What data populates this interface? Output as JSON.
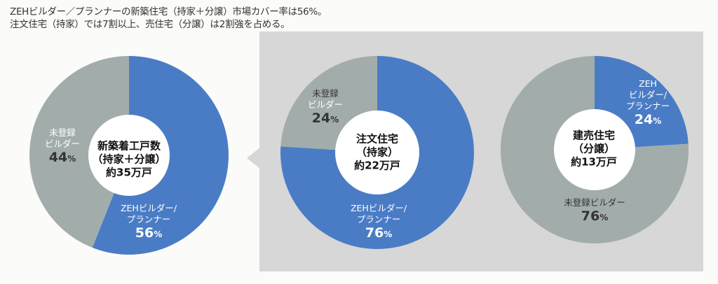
{
  "headline": [
    "ZEHビルダー／プランナーの新築住宅（持家＋分譲）市場カバー率は56%。",
    "注文住宅（持家）では7割以上、売住宅（分譲）は2割強を占める。"
  ],
  "colors": {
    "zeh": "#4a7cc6",
    "unregistered": "#a2adab",
    "panel": "#d6d7d6"
  },
  "chart_data": [
    {
      "type": "pie",
      "title": [
        "新築着工戸数",
        "（持家＋分譲）",
        "約35万戸"
      ],
      "slices": [
        {
          "name": "ZEHビルダー/プランナー",
          "label_lines": [
            "ZEHビルダー/",
            "プランナー"
          ],
          "value": 56,
          "pct_label": "56"
        },
        {
          "name": "未登録ビルダー",
          "label_lines": [
            "未登録",
            "ビルダー"
          ],
          "value": 44,
          "pct_label": "44"
        }
      ]
    },
    {
      "type": "pie",
      "title": [
        "注文住宅",
        "（持家）",
        "約22万戸"
      ],
      "slices": [
        {
          "name": "ZEHビルダー/プランナー",
          "label_lines": [
            "ZEHビルダー/",
            "プランナー"
          ],
          "value": 76,
          "pct_label": "76"
        },
        {
          "name": "未登録ビルダー",
          "label_lines": [
            "未登録",
            "ビルダー"
          ],
          "value": 24,
          "pct_label": "24"
        }
      ]
    },
    {
      "type": "pie",
      "title": [
        "建売住宅",
        "（分譲）",
        "約13万戸"
      ],
      "slices": [
        {
          "name": "ZEHビルダー/プランナー",
          "label_lines": [
            "ZEH",
            "ビルダー/",
            "プランナー"
          ],
          "value": 24,
          "pct_label": "24"
        },
        {
          "name": "未登録ビルダー",
          "label_lines": [
            "未登録ビルダー"
          ],
          "value": 76,
          "pct_label": "76"
        }
      ]
    }
  ],
  "pct_sign": "%"
}
